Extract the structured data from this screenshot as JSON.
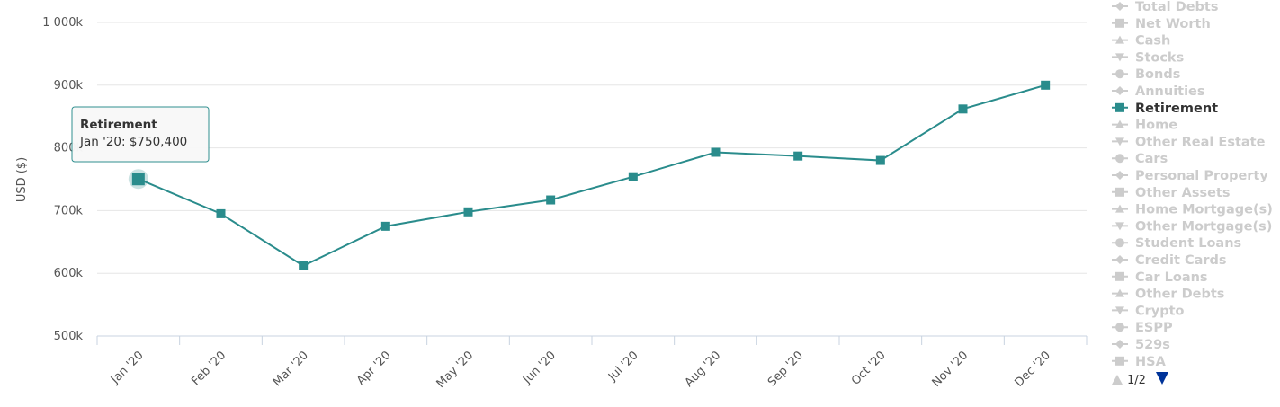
{
  "chart_data": {
    "type": "line",
    "ylabel": "USD ($)",
    "ylim": [
      500000,
      1000000
    ],
    "y_ticks": [
      {
        "value": 500000,
        "label": "500k"
      },
      {
        "value": 600000,
        "label": "600k"
      },
      {
        "value": 700000,
        "label": "700k"
      },
      {
        "value": 800000,
        "label": "800k"
      },
      {
        "value": 900000,
        "label": "900k"
      },
      {
        "value": 1000000,
        "label": "1 000k"
      }
    ],
    "categories": [
      "Jan '20",
      "Feb '20",
      "Mar '20",
      "Apr '20",
      "May '20",
      "Jun '20",
      "Jul '20",
      "Aug '20",
      "Sep '20",
      "Oct '20",
      "Nov '20",
      "Dec '20"
    ],
    "series": [
      {
        "name": "Retirement",
        "color": "#2a8c8c",
        "values": [
          750400,
          695000,
          612000,
          675000,
          698000,
          717000,
          754000,
          793000,
          787000,
          780000,
          862000,
          900000
        ]
      }
    ],
    "grid": true,
    "legend_position": "right",
    "tooltip": {
      "title": "Retirement",
      "text": "Jan '20: $750,400",
      "point_index": 0
    }
  },
  "legend": {
    "items": [
      {
        "label": "Total Debts",
        "symbol": "diamond",
        "active": false
      },
      {
        "label": "Net Worth",
        "symbol": "square",
        "active": false
      },
      {
        "label": "Cash",
        "symbol": "triangle",
        "active": false
      },
      {
        "label": "Stocks",
        "symbol": "triangle-down",
        "active": false
      },
      {
        "label": "Bonds",
        "symbol": "circle",
        "active": false
      },
      {
        "label": "Annuities",
        "symbol": "diamond",
        "active": false
      },
      {
        "label": "Retirement",
        "symbol": "square",
        "active": true
      },
      {
        "label": "Home",
        "symbol": "triangle",
        "active": false
      },
      {
        "label": "Other Real Estate",
        "symbol": "triangle-down",
        "active": false
      },
      {
        "label": "Cars",
        "symbol": "circle",
        "active": false
      },
      {
        "label": "Personal Property",
        "symbol": "diamond",
        "active": false
      },
      {
        "label": "Other Assets",
        "symbol": "square",
        "active": false
      },
      {
        "label": "Home Mortgage(s)",
        "symbol": "triangle",
        "active": false
      },
      {
        "label": "Other Mortgage(s)",
        "symbol": "triangle-down",
        "active": false
      },
      {
        "label": "Student Loans",
        "symbol": "circle",
        "active": false
      },
      {
        "label": "Credit Cards",
        "symbol": "diamond",
        "active": false
      },
      {
        "label": "Car Loans",
        "symbol": "square",
        "active": false
      },
      {
        "label": "Other Debts",
        "symbol": "triangle",
        "active": false
      },
      {
        "label": "Crypto",
        "symbol": "triangle-down",
        "active": false
      },
      {
        "label": "ESPP",
        "symbol": "circle",
        "active": false
      },
      {
        "label": "529s",
        "symbol": "diamond",
        "active": false
      },
      {
        "label": "HSA",
        "symbol": "square",
        "active": false
      }
    ],
    "pager": {
      "text": "1/2",
      "up_icon": "triangle-up-icon",
      "down_icon": "triangle-down-icon",
      "up_color": "#cccccc",
      "down_color": "#003399"
    }
  }
}
